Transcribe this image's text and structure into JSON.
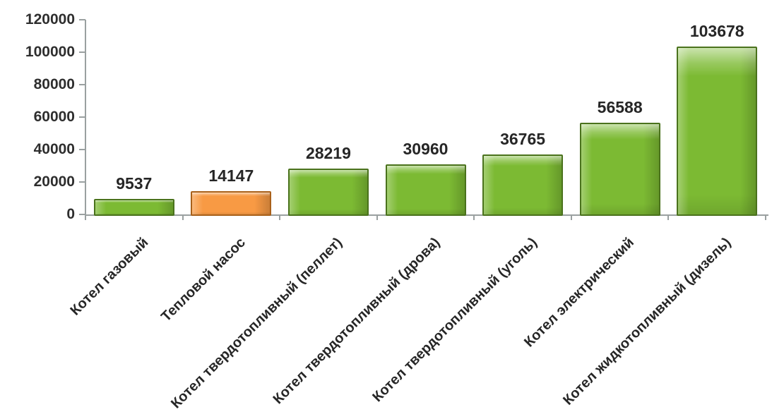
{
  "chart_data": {
    "type": "bar",
    "title": "",
    "xlabel": "",
    "ylabel": "",
    "categories": [
      "Котел газовый",
      "Тепловой насос",
      "Котел твердотопливный (пеллет)",
      "Котел твердотопливный (дрова)",
      "Котел твердотопливный (уголь)",
      "Котел электрический",
      "Котел жидкотопливный (дизель)"
    ],
    "values": [
      9537,
      14147,
      28219,
      30960,
      36765,
      56588,
      103678
    ],
    "value_labels": [
      "9537",
      "14147",
      "28219",
      "30960",
      "36765",
      "56588",
      "103678"
    ],
    "bar_fills": [
      "#7CBA33",
      "#F89A44",
      "#7CBA33",
      "#7CBA33",
      "#7CBA33",
      "#7CBA33",
      "#7CBA33"
    ],
    "bar_borders": [
      "#4A721C",
      "#A9611A",
      "#4A721C",
      "#4A721C",
      "#4A721C",
      "#4A721C",
      "#4A721C"
    ],
    "ylim": [
      0,
      120000
    ],
    "ytick_step": 20000,
    "ytick_labels": [
      "0",
      "20000",
      "40000",
      "60000",
      "80000",
      "100000",
      "120000"
    ],
    "grid": false,
    "legend": null,
    "category_label_rotation_deg": 45
  },
  "colors": {
    "green_fill": "#7CBA33",
    "green_border": "#4A721C",
    "orange_fill": "#F89A44",
    "orange_border": "#A9611A",
    "axis": "#9AA0A0",
    "text": "#262626",
    "background": "#FFFFFF"
  }
}
